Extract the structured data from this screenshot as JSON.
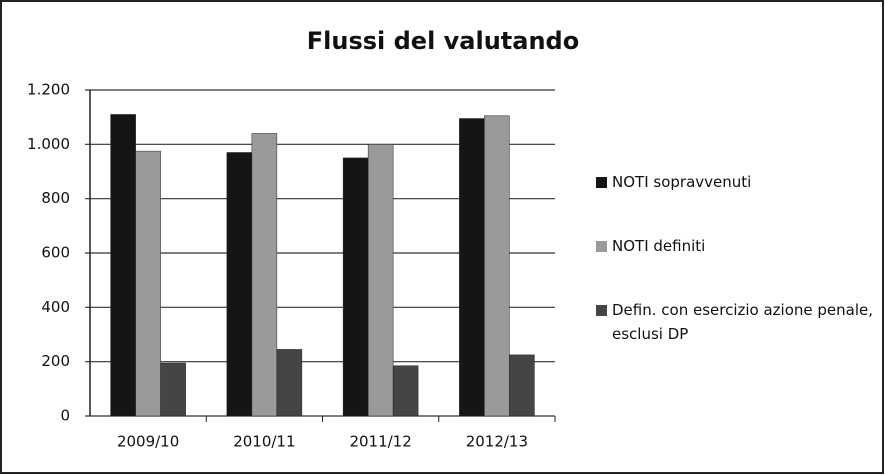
{
  "chart_data": {
    "type": "bar",
    "title": "Flussi del valutando",
    "categories": [
      "2009/10",
      "2010/11",
      "2011/12",
      "2012/13"
    ],
    "series": [
      {
        "name": "NOTI sopravvenuti",
        "color": "#151515",
        "values": [
          1110,
          970,
          950,
          1095
        ]
      },
      {
        "name": "NOTI definiti",
        "color": "#9a9a9a",
        "values": [
          975,
          1040,
          1000,
          1105
        ]
      },
      {
        "name": "Defin. con esercizio azione penale, esclusi DP",
        "color": "#454545",
        "values": [
          195,
          245,
          185,
          225
        ]
      }
    ],
    "ylim": [
      0,
      1200
    ],
    "yticks": [
      0,
      200,
      400,
      600,
      800,
      {
        "value": 1000,
        "label": "1.000"
      },
      {
        "value": 1200,
        "label": "1.200"
      }
    ],
    "grid": true,
    "legend": "right"
  }
}
